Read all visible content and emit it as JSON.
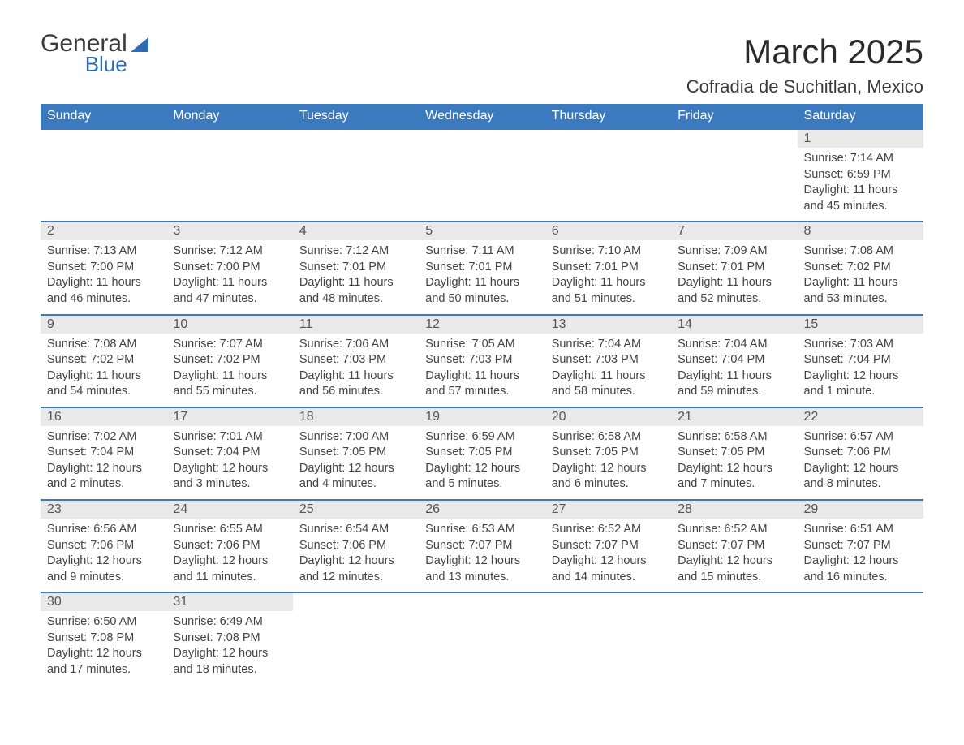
{
  "logo": {
    "line1": "General",
    "line2": "Blue"
  },
  "header": {
    "title": "March 2025",
    "location": "Cofradia de Suchitlan, Mexico"
  },
  "colors": {
    "header_bg": "#3c7abf",
    "header_text": "#ffffff",
    "daynum_bg": "#e9e9e9",
    "row_border": "#3c7abf",
    "logo_blue": "#2d6bb4"
  },
  "columns": [
    "Sunday",
    "Monday",
    "Tuesday",
    "Wednesday",
    "Thursday",
    "Friday",
    "Saturday"
  ],
  "weeks": [
    [
      null,
      null,
      null,
      null,
      null,
      null,
      {
        "day": "1",
        "sunrise": "7:14 AM",
        "sunset": "6:59 PM",
        "daylight": "11 hours and 45 minutes."
      }
    ],
    [
      {
        "day": "2",
        "sunrise": "7:13 AM",
        "sunset": "7:00 PM",
        "daylight": "11 hours and 46 minutes."
      },
      {
        "day": "3",
        "sunrise": "7:12 AM",
        "sunset": "7:00 PM",
        "daylight": "11 hours and 47 minutes."
      },
      {
        "day": "4",
        "sunrise": "7:12 AM",
        "sunset": "7:01 PM",
        "daylight": "11 hours and 48 minutes."
      },
      {
        "day": "5",
        "sunrise": "7:11 AM",
        "sunset": "7:01 PM",
        "daylight": "11 hours and 50 minutes."
      },
      {
        "day": "6",
        "sunrise": "7:10 AM",
        "sunset": "7:01 PM",
        "daylight": "11 hours and 51 minutes."
      },
      {
        "day": "7",
        "sunrise": "7:09 AM",
        "sunset": "7:01 PM",
        "daylight": "11 hours and 52 minutes."
      },
      {
        "day": "8",
        "sunrise": "7:08 AM",
        "sunset": "7:02 PM",
        "daylight": "11 hours and 53 minutes."
      }
    ],
    [
      {
        "day": "9",
        "sunrise": "7:08 AM",
        "sunset": "7:02 PM",
        "daylight": "11 hours and 54 minutes."
      },
      {
        "day": "10",
        "sunrise": "7:07 AM",
        "sunset": "7:02 PM",
        "daylight": "11 hours and 55 minutes."
      },
      {
        "day": "11",
        "sunrise": "7:06 AM",
        "sunset": "7:03 PM",
        "daylight": "11 hours and 56 minutes."
      },
      {
        "day": "12",
        "sunrise": "7:05 AM",
        "sunset": "7:03 PM",
        "daylight": "11 hours and 57 minutes."
      },
      {
        "day": "13",
        "sunrise": "7:04 AM",
        "sunset": "7:03 PM",
        "daylight": "11 hours and 58 minutes."
      },
      {
        "day": "14",
        "sunrise": "7:04 AM",
        "sunset": "7:04 PM",
        "daylight": "11 hours and 59 minutes."
      },
      {
        "day": "15",
        "sunrise": "7:03 AM",
        "sunset": "7:04 PM",
        "daylight": "12 hours and 1 minute."
      }
    ],
    [
      {
        "day": "16",
        "sunrise": "7:02 AM",
        "sunset": "7:04 PM",
        "daylight": "12 hours and 2 minutes."
      },
      {
        "day": "17",
        "sunrise": "7:01 AM",
        "sunset": "7:04 PM",
        "daylight": "12 hours and 3 minutes."
      },
      {
        "day": "18",
        "sunrise": "7:00 AM",
        "sunset": "7:05 PM",
        "daylight": "12 hours and 4 minutes."
      },
      {
        "day": "19",
        "sunrise": "6:59 AM",
        "sunset": "7:05 PM",
        "daylight": "12 hours and 5 minutes."
      },
      {
        "day": "20",
        "sunrise": "6:58 AM",
        "sunset": "7:05 PM",
        "daylight": "12 hours and 6 minutes."
      },
      {
        "day": "21",
        "sunrise": "6:58 AM",
        "sunset": "7:05 PM",
        "daylight": "12 hours and 7 minutes."
      },
      {
        "day": "22",
        "sunrise": "6:57 AM",
        "sunset": "7:06 PM",
        "daylight": "12 hours and 8 minutes."
      }
    ],
    [
      {
        "day": "23",
        "sunrise": "6:56 AM",
        "sunset": "7:06 PM",
        "daylight": "12 hours and 9 minutes."
      },
      {
        "day": "24",
        "sunrise": "6:55 AM",
        "sunset": "7:06 PM",
        "daylight": "12 hours and 11 minutes."
      },
      {
        "day": "25",
        "sunrise": "6:54 AM",
        "sunset": "7:06 PM",
        "daylight": "12 hours and 12 minutes."
      },
      {
        "day": "26",
        "sunrise": "6:53 AM",
        "sunset": "7:07 PM",
        "daylight": "12 hours and 13 minutes."
      },
      {
        "day": "27",
        "sunrise": "6:52 AM",
        "sunset": "7:07 PM",
        "daylight": "12 hours and 14 minutes."
      },
      {
        "day": "28",
        "sunrise": "6:52 AM",
        "sunset": "7:07 PM",
        "daylight": "12 hours and 15 minutes."
      },
      {
        "day": "29",
        "sunrise": "6:51 AM",
        "sunset": "7:07 PM",
        "daylight": "12 hours and 16 minutes."
      }
    ],
    [
      {
        "day": "30",
        "sunrise": "6:50 AM",
        "sunset": "7:08 PM",
        "daylight": "12 hours and 17 minutes."
      },
      {
        "day": "31",
        "sunrise": "6:49 AM",
        "sunset": "7:08 PM",
        "daylight": "12 hours and 18 minutes."
      },
      null,
      null,
      null,
      null,
      null
    ]
  ],
  "labels": {
    "sunrise": "Sunrise: ",
    "sunset": "Sunset: ",
    "daylight": "Daylight: "
  }
}
